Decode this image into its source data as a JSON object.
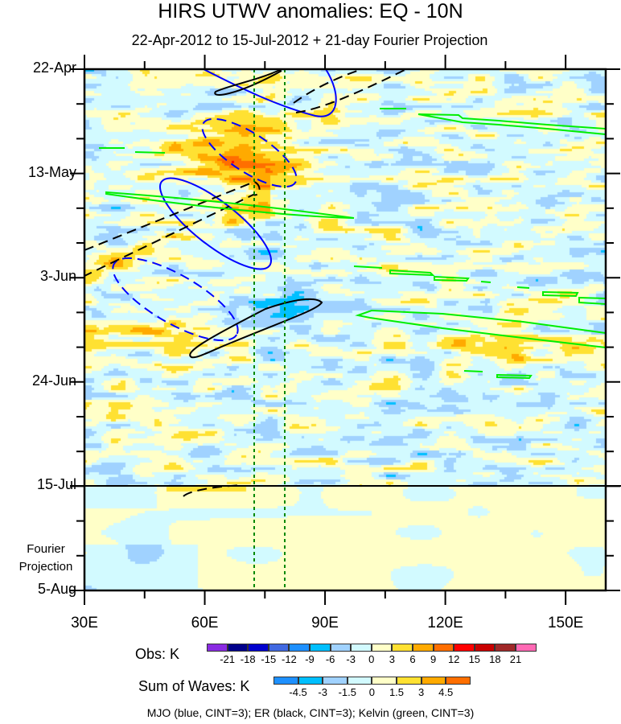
{
  "chart_data": {
    "type": "heatmap",
    "title": "HIRS UTWV anomalies: EQ - 10N",
    "subtitle": "22-Apr-2012 to 15-Jul-2012 + 21-day Fourier Projection",
    "xlabel": "",
    "ylabel": "",
    "xlim": [
      30,
      160
    ],
    "x_ticks": [
      "30E",
      "60E",
      "90E",
      "120E",
      "150E"
    ],
    "x_tick_values": [
      30,
      60,
      90,
      120,
      150
    ],
    "y_ticks": [
      "22-Apr",
      "13-May",
      "3-Jun",
      "24-Jun",
      "15-Jul",
      "5-Aug"
    ],
    "y_tick_days": [
      0,
      21,
      42,
      63,
      84,
      105
    ],
    "observation_end_label": "15-Jul",
    "projection_label": [
      "Fourier",
      "Projection"
    ],
    "reference_lines_lon": [
      72,
      80
    ],
    "obs_colorbar": {
      "label": "Obs: K",
      "levels": [
        "-21",
        "-18",
        "-15",
        "-12",
        "-9",
        "-6",
        "-3",
        "0",
        "3",
        "6",
        "9",
        "12",
        "15",
        "18",
        "21"
      ],
      "colors": [
        "#8a2be2",
        "#00008b",
        "#0000cd",
        "#4169e1",
        "#1e90ff",
        "#00bfff",
        "#a0d2ff",
        "#d2faff",
        "#ffffc8",
        "#ffe132",
        "#ffaa00",
        "#ff6e00",
        "#ff0000",
        "#c80000",
        "#a02828",
        "#ff69b4"
      ]
    },
    "waves_colorbar": {
      "label": "Sum of Waves: K",
      "levels": [
        "-4.5",
        "-3",
        "-1.5",
        "0",
        "1.5",
        "3",
        "4.5"
      ],
      "colors": [
        "#1e90ff",
        "#00bfff",
        "#a0d2ff",
        "#d2faff",
        "#ffffc8",
        "#ffe132",
        "#ffaa00",
        "#ff6e00"
      ]
    },
    "contour_legend": "MJO (blue, CINT=3); ER (black, CINT=3); Kelvin (green, CINT=3)",
    "contour_colors": {
      "mjo": "#0000ff",
      "er": "#000000",
      "kelvin": "#00ee00",
      "reference": "#008800"
    }
  }
}
